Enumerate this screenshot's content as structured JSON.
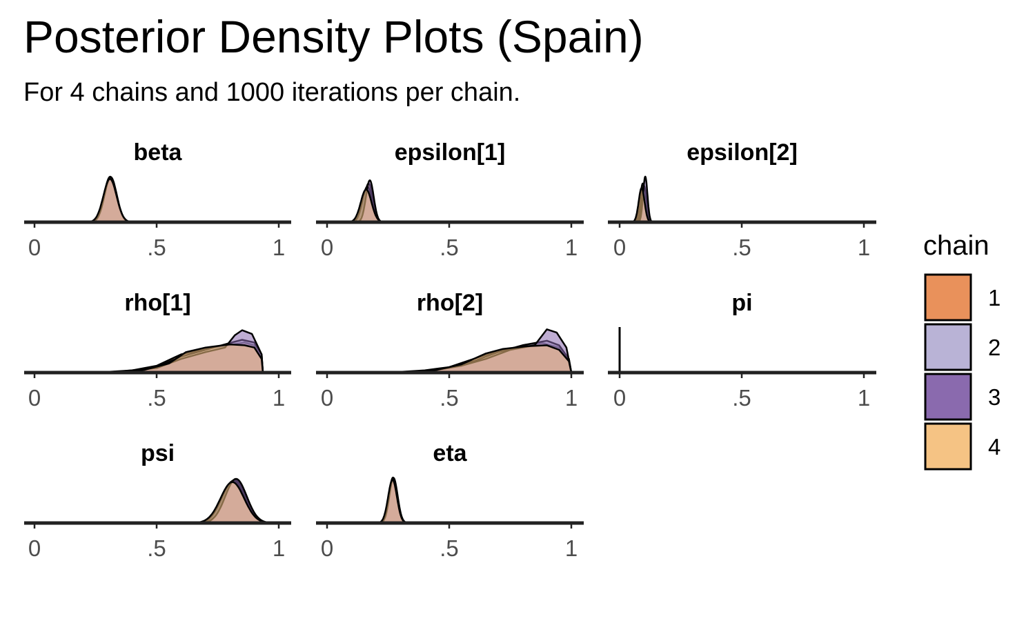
{
  "title": "Posterior Density Plots (Spain)",
  "subtitle": "For 4 chains and 1000 iterations per chain.",
  "chart_data": {
    "type": "area",
    "xlim": [
      0,
      1
    ],
    "x_ticks": [
      0,
      0.5,
      1
    ],
    "x_tick_labels": [
      "0",
      ".5",
      "1"
    ],
    "grid": false,
    "legend": {
      "title": "chain",
      "placement": "right",
      "entries": [
        {
          "label": "1",
          "color": "#E9915B"
        },
        {
          "label": "2",
          "color": "#B9B3D6"
        },
        {
          "label": "3",
          "color": "#8A6AAE"
        },
        {
          "label": "4",
          "color": "#F5C384"
        }
      ]
    },
    "panels": [
      {
        "name": "beta",
        "type": "peak",
        "chains": [
          {
            "chain": "1",
            "mean": 0.31,
            "sd": 0.025,
            "height": 1.0
          },
          {
            "chain": "2",
            "mean": 0.31,
            "sd": 0.026,
            "height": 0.97
          },
          {
            "chain": "3",
            "mean": 0.312,
            "sd": 0.025,
            "height": 0.99
          },
          {
            "chain": "4",
            "mean": 0.309,
            "sd": 0.027,
            "height": 0.95
          }
        ]
      },
      {
        "name": "epsilon[1]",
        "type": "peak",
        "chains": [
          {
            "chain": "1",
            "mean": 0.17,
            "sd": 0.018,
            "height": 0.85
          },
          {
            "chain": "2",
            "mean": 0.165,
            "sd": 0.02,
            "height": 0.78
          },
          {
            "chain": "3",
            "mean": 0.175,
            "sd": 0.016,
            "height": 0.92
          },
          {
            "chain": "4",
            "mean": 0.16,
            "sd": 0.022,
            "height": 0.72
          }
        ]
      },
      {
        "name": "epsilon[2]",
        "type": "peak",
        "chains": [
          {
            "chain": "1",
            "mean": 0.095,
            "sd": 0.011,
            "height": 0.85
          },
          {
            "chain": "2",
            "mean": 0.1,
            "sd": 0.01,
            "height": 0.8
          },
          {
            "chain": "3",
            "mean": 0.105,
            "sd": 0.009,
            "height": 1.0
          },
          {
            "chain": "4",
            "mean": 0.09,
            "sd": 0.012,
            "height": 0.75
          }
        ]
      },
      {
        "name": "rho[1]",
        "type": "skewed",
        "chains": [
          {
            "chain": "1",
            "points": [
              [
                0.25,
                0.0
              ],
              [
                0.4,
                0.05
              ],
              [
                0.5,
                0.15
              ],
              [
                0.6,
                0.4
              ],
              [
                0.7,
                0.52
              ],
              [
                0.8,
                0.6
              ],
              [
                0.86,
                0.66
              ],
              [
                0.9,
                0.6
              ],
              [
                0.93,
                0.35
              ],
              [
                0.935,
                0.0
              ]
            ]
          },
          {
            "chain": "2",
            "points": [
              [
                0.25,
                0.0
              ],
              [
                0.4,
                0.04
              ],
              [
                0.5,
                0.12
              ],
              [
                0.6,
                0.35
              ],
              [
                0.7,
                0.5
              ],
              [
                0.8,
                0.65
              ],
              [
                0.85,
                0.72
              ],
              [
                0.9,
                0.66
              ],
              [
                0.93,
                0.4
              ],
              [
                0.935,
                0.0
              ]
            ]
          },
          {
            "chain": "3",
            "points": [
              [
                0.3,
                0.0
              ],
              [
                0.5,
                0.1
              ],
              [
                0.6,
                0.3
              ],
              [
                0.7,
                0.45
              ],
              [
                0.78,
                0.55
              ],
              [
                0.82,
                0.82
              ],
              [
                0.85,
                0.93
              ],
              [
                0.89,
                0.85
              ],
              [
                0.93,
                0.4
              ],
              [
                0.935,
                0.0
              ]
            ]
          },
          {
            "chain": "4",
            "points": [
              [
                0.3,
                0.0
              ],
              [
                0.45,
                0.06
              ],
              [
                0.55,
                0.2
              ],
              [
                0.62,
                0.45
              ],
              [
                0.7,
                0.55
              ],
              [
                0.8,
                0.62
              ],
              [
                0.86,
                0.6
              ],
              [
                0.9,
                0.55
              ],
              [
                0.93,
                0.3
              ],
              [
                0.935,
                0.0
              ]
            ]
          }
        ]
      },
      {
        "name": "rho[2]",
        "type": "skewed",
        "chains": [
          {
            "chain": "1",
            "points": [
              [
                0.25,
                0.0
              ],
              [
                0.4,
                0.05
              ],
              [
                0.5,
                0.12
              ],
              [
                0.6,
                0.3
              ],
              [
                0.7,
                0.48
              ],
              [
                0.8,
                0.58
              ],
              [
                0.88,
                0.65
              ],
              [
                0.95,
                0.55
              ],
              [
                0.99,
                0.3
              ],
              [
                1.0,
                0.0
              ]
            ]
          },
          {
            "chain": "2",
            "points": [
              [
                0.25,
                0.0
              ],
              [
                0.4,
                0.04
              ],
              [
                0.5,
                0.1
              ],
              [
                0.6,
                0.25
              ],
              [
                0.7,
                0.45
              ],
              [
                0.8,
                0.6
              ],
              [
                0.9,
                0.7
              ],
              [
                0.95,
                0.6
              ],
              [
                0.99,
                0.3
              ],
              [
                1.0,
                0.0
              ]
            ]
          },
          {
            "chain": "3",
            "points": [
              [
                0.3,
                0.0
              ],
              [
                0.45,
                0.06
              ],
              [
                0.55,
                0.15
              ],
              [
                0.65,
                0.3
              ],
              [
                0.75,
                0.5
              ],
              [
                0.85,
                0.6
              ],
              [
                0.9,
                0.95
              ],
              [
                0.94,
                0.88
              ],
              [
                0.98,
                0.55
              ],
              [
                1.0,
                0.0
              ]
            ]
          },
          {
            "chain": "4",
            "points": [
              [
                0.3,
                0.0
              ],
              [
                0.45,
                0.06
              ],
              [
                0.55,
                0.18
              ],
              [
                0.65,
                0.42
              ],
              [
                0.72,
                0.52
              ],
              [
                0.82,
                0.58
              ],
              [
                0.9,
                0.6
              ],
              [
                0.95,
                0.5
              ],
              [
                0.99,
                0.25
              ],
              [
                1.0,
                0.0
              ]
            ]
          }
        ]
      },
      {
        "name": "pi",
        "type": "spike",
        "value": 0.0
      },
      {
        "name": "psi",
        "type": "peak",
        "chains": [
          {
            "chain": "1",
            "mean": 0.82,
            "sd": 0.045,
            "height": 0.95
          },
          {
            "chain": "2",
            "mean": 0.815,
            "sd": 0.047,
            "height": 0.93
          },
          {
            "chain": "3",
            "mean": 0.825,
            "sd": 0.044,
            "height": 0.97
          },
          {
            "chain": "4",
            "mean": 0.81,
            "sd": 0.048,
            "height": 0.9
          }
        ]
      },
      {
        "name": "eta",
        "type": "peak",
        "chains": [
          {
            "chain": "1",
            "mean": 0.27,
            "sd": 0.017,
            "height": 1.0
          },
          {
            "chain": "2",
            "mean": 0.27,
            "sd": 0.018,
            "height": 0.97
          },
          {
            "chain": "3",
            "mean": 0.272,
            "sd": 0.017,
            "height": 0.99
          },
          {
            "chain": "4",
            "mean": 0.268,
            "sd": 0.018,
            "height": 0.95
          }
        ]
      }
    ]
  }
}
